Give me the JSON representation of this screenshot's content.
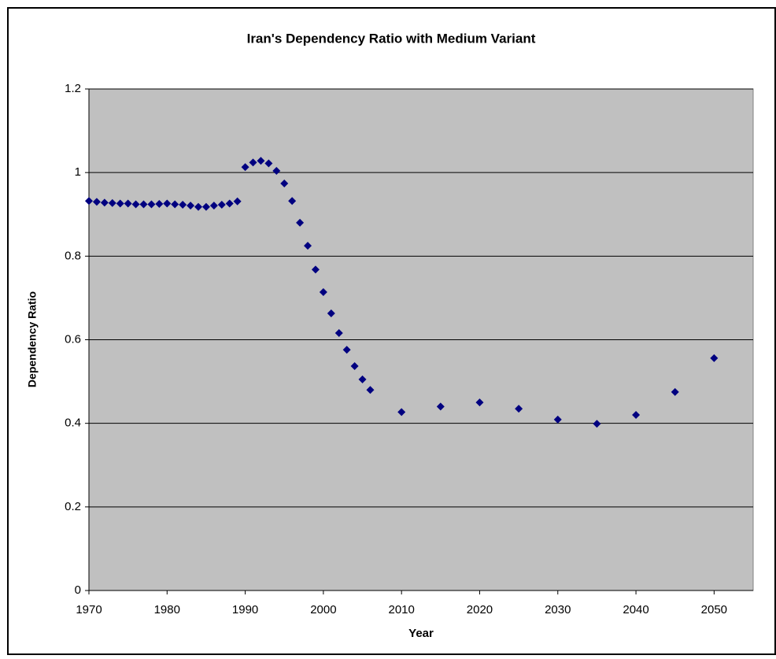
{
  "chart_data": {
    "type": "scatter",
    "title": "Iran's Dependency Ratio with Medium Variant",
    "x_label": "Year",
    "y_label": "Dependency Ratio",
    "series": [
      {
        "name": "Dependency Ratio",
        "color": "#000080",
        "x": [
          1970,
          1971,
          1972,
          1973,
          1974,
          1975,
          1976,
          1977,
          1978,
          1979,
          1980,
          1981,
          1982,
          1983,
          1984,
          1985,
          1986,
          1987,
          1988,
          1989,
          1990,
          1991,
          1992,
          1993,
          1994,
          1995,
          1996,
          1997,
          1998,
          1999,
          2000,
          2001,
          2002,
          2003,
          2004,
          2005,
          2006,
          2010,
          2015,
          2020,
          2025,
          2030,
          2035,
          2040,
          2045,
          2050
        ],
        "values": [
          0.932,
          0.93,
          0.928,
          0.927,
          0.926,
          0.926,
          0.924,
          0.924,
          0.924,
          0.925,
          0.926,
          0.924,
          0.923,
          0.921,
          0.918,
          0.918,
          0.921,
          0.923,
          0.926,
          0.931,
          1.013,
          1.024,
          1.028,
          1.022,
          1.004,
          0.974,
          0.932,
          0.88,
          0.825,
          0.768,
          0.714,
          0.663,
          0.616,
          0.576,
          0.537,
          0.505,
          0.48,
          0.427,
          0.44,
          0.45,
          0.435,
          0.409,
          0.399,
          0.42,
          0.475,
          0.556
        ]
      }
    ],
    "xlim": [
      1970,
      2055
    ],
    "xticks": [
      1970,
      1980,
      1990,
      2000,
      2010,
      2020,
      2030,
      2040,
      2050
    ],
    "ylim": [
      0,
      1.2
    ],
    "yticks": [
      0,
      0.2,
      0.4,
      0.6,
      0.8,
      1,
      1.2
    ],
    "grid": true
  }
}
